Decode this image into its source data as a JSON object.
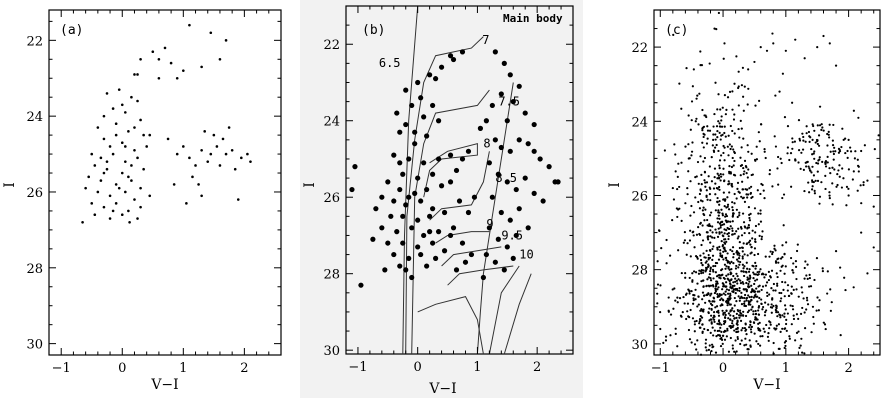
{
  "chart_data": [
    {
      "type": "scatter",
      "panel_label": "(a)",
      "xlabel": "V−I",
      "ylabel": "I",
      "xlim": [
        -1.2,
        2.6
      ],
      "ylim": [
        30.3,
        21.2
      ],
      "y_inverted": true,
      "xticks": [
        "−1",
        "0",
        "1",
        "2"
      ],
      "yticks": [
        "22",
        "24",
        "26",
        "28",
        "30"
      ],
      "marker": "small",
      "points": [
        [
          -0.3,
          24.0
        ],
        [
          -0.25,
          23.4
        ],
        [
          -0.05,
          23.3
        ],
        [
          0.15,
          23.5
        ],
        [
          0.25,
          23.6
        ],
        [
          -0.15,
          23.8
        ],
        [
          0.05,
          23.9
        ],
        [
          0.3,
          24.1
        ],
        [
          -0.4,
          24.3
        ],
        [
          -0.1,
          24.2
        ],
        [
          0.1,
          24.4
        ],
        [
          0.35,
          24.5
        ],
        [
          -0.3,
          24.6
        ],
        [
          -0.2,
          24.8
        ],
        [
          0.0,
          24.7
        ],
        [
          0.2,
          24.9
        ],
        [
          0.4,
          24.8
        ],
        [
          -0.5,
          25.0
        ],
        [
          -0.35,
          25.1
        ],
        [
          -0.15,
          25.0
        ],
        [
          0.05,
          25.2
        ],
        [
          0.25,
          25.1
        ],
        [
          -0.45,
          25.3
        ],
        [
          -0.25,
          25.4
        ],
        [
          0.0,
          25.5
        ],
        [
          0.15,
          25.3
        ],
        [
          0.35,
          25.4
        ],
        [
          -0.55,
          25.6
        ],
        [
          -0.35,
          25.7
        ],
        [
          -0.1,
          25.8
        ],
        [
          0.1,
          25.6
        ],
        [
          0.3,
          25.9
        ],
        [
          -0.6,
          25.9
        ],
        [
          -0.4,
          26.0
        ],
        [
          -0.2,
          26.1
        ],
        [
          0.05,
          26.0
        ],
        [
          0.2,
          26.2
        ],
        [
          0.45,
          26.1
        ],
        [
          -0.5,
          26.3
        ],
        [
          -0.3,
          26.4
        ],
        [
          -0.1,
          26.3
        ],
        [
          0.1,
          26.5
        ],
        [
          0.3,
          26.4
        ],
        [
          -0.45,
          26.6
        ],
        [
          -0.2,
          26.7
        ],
        [
          0.0,
          26.6
        ],
        [
          0.25,
          26.7
        ],
        [
          -0.65,
          26.8
        ],
        [
          -0.1,
          24.5
        ],
        [
          0.05,
          24.8
        ],
        [
          -0.05,
          25.9
        ],
        [
          0.15,
          25.7
        ],
        [
          -0.25,
          25.2
        ],
        [
          0.2,
          24.3
        ],
        [
          -0.15,
          26.5
        ],
        [
          0.0,
          23.7
        ],
        [
          -0.3,
          25.5
        ],
        [
          0.12,
          26.8
        ],
        [
          0.2,
          22.9
        ],
        [
          0.3,
          22.5
        ],
        [
          0.25,
          22.9
        ],
        [
          0.5,
          22.3
        ],
        [
          0.6,
          22.5
        ],
        [
          0.7,
          22.2
        ],
        [
          0.8,
          22.6
        ],
        [
          0.9,
          23.0
        ],
        [
          1.0,
          22.8
        ],
        [
          1.1,
          21.6
        ],
        [
          1.3,
          22.7
        ],
        [
          1.45,
          21.8
        ],
        [
          1.6,
          22.5
        ],
        [
          1.7,
          22.0
        ],
        [
          0.6,
          23.0
        ],
        [
          0.45,
          24.5
        ],
        [
          0.75,
          24.6
        ],
        [
          0.9,
          25.0
        ],
        [
          1.0,
          24.8
        ],
        [
          1.1,
          25.1
        ],
        [
          1.2,
          25.3
        ],
        [
          1.3,
          24.9
        ],
        [
          1.4,
          25.2
        ],
        [
          1.45,
          25.0
        ],
        [
          1.55,
          24.8
        ],
        [
          1.6,
          25.3
        ],
        [
          1.7,
          25.0
        ],
        [
          1.8,
          24.9
        ],
        [
          1.85,
          25.4
        ],
        [
          1.95,
          25.1
        ],
        [
          2.05,
          25.0
        ],
        [
          1.65,
          24.6
        ],
        [
          1.5,
          24.5
        ],
        [
          1.75,
          24.3
        ],
        [
          0.85,
          25.8
        ],
        [
          1.15,
          25.6
        ],
        [
          1.3,
          26.1
        ],
        [
          1.05,
          26.3
        ],
        [
          1.25,
          25.8
        ],
        [
          1.9,
          26.2
        ],
        [
          2.1,
          25.2
        ],
        [
          1.35,
          24.4
        ]
      ]
    },
    {
      "type": "scatter",
      "panel_label": "(b)",
      "title": "Main body",
      "xlabel": "V−I",
      "ylabel": "I",
      "xlim": [
        -1.2,
        2.6
      ],
      "ylim": [
        30.1,
        21.0
      ],
      "y_inverted": true,
      "xticks": [
        "−1",
        "0",
        "1",
        "2"
      ],
      "yticks": [
        "22",
        "24",
        "26",
        "28",
        "30"
      ],
      "marker": "large",
      "isochrone_labels": [
        {
          "text": "7",
          "x": 1.08,
          "y": 22.0
        },
        {
          "text": "6.5",
          "x": -0.65,
          "y": 22.6
        },
        {
          "text": "7.5",
          "x": 1.35,
          "y": 23.6
        },
        {
          "text": "8",
          "x": 1.1,
          "y": 24.7
        },
        {
          "text": "8.5",
          "x": 1.3,
          "y": 25.6
        },
        {
          "text": "9",
          "x": 1.15,
          "y": 26.8
        },
        {
          "text": "9.5",
          "x": 1.4,
          "y": 27.1
        },
        {
          "text": "10",
          "x": 1.7,
          "y": 27.6
        }
      ],
      "points": [
        [
          -0.2,
          23.2
        ],
        [
          0.0,
          23.0
        ],
        [
          0.2,
          22.8
        ],
        [
          0.4,
          22.6
        ],
        [
          0.6,
          22.4
        ],
        [
          0.75,
          22.2
        ],
        [
          0.55,
          22.3
        ],
        [
          0.3,
          22.9
        ],
        [
          -0.1,
          23.6
        ],
        [
          -0.35,
          23.8
        ],
        [
          -0.2,
          24.1
        ],
        [
          0.1,
          23.9
        ],
        [
          0.35,
          24.0
        ],
        [
          0.15,
          24.4
        ],
        [
          -0.05,
          24.6
        ],
        [
          -0.3,
          24.3
        ],
        [
          0.05,
          23.4
        ],
        [
          -0.4,
          24.9
        ],
        [
          -0.15,
          25.0
        ],
        [
          0.1,
          25.1
        ],
        [
          0.35,
          25.0
        ],
        [
          0.55,
          24.9
        ],
        [
          -0.25,
          25.4
        ],
        [
          0.0,
          25.5
        ],
        [
          0.25,
          25.4
        ],
        [
          -0.5,
          25.6
        ],
        [
          -0.3,
          25.8
        ],
        [
          -0.05,
          25.9
        ],
        [
          0.15,
          25.8
        ],
        [
          0.4,
          25.7
        ],
        [
          -0.6,
          26.0
        ],
        [
          -0.4,
          26.1
        ],
        [
          -0.2,
          26.2
        ],
        [
          0.05,
          26.1
        ],
        [
          0.25,
          26.3
        ],
        [
          -0.7,
          26.3
        ],
        [
          -0.45,
          26.5
        ],
        [
          -0.25,
          26.5
        ],
        [
          0.0,
          26.6
        ],
        [
          0.2,
          26.5
        ],
        [
          -0.6,
          26.8
        ],
        [
          -0.35,
          26.9
        ],
        [
          -0.1,
          26.8
        ],
        [
          0.1,
          27.0
        ],
        [
          0.35,
          26.9
        ],
        [
          -0.75,
          27.1
        ],
        [
          -0.5,
          27.2
        ],
        [
          -0.25,
          27.2
        ],
        [
          0.0,
          27.3
        ],
        [
          0.25,
          27.2
        ],
        [
          -0.4,
          27.5
        ],
        [
          -0.15,
          27.6
        ],
        [
          0.05,
          27.5
        ],
        [
          -0.3,
          27.8
        ],
        [
          0.15,
          27.8
        ],
        [
          -0.55,
          27.9
        ],
        [
          -0.1,
          28.1
        ],
        [
          -0.95,
          28.3
        ],
        [
          -0.05,
          24.3
        ],
        [
          0.25,
          23.6
        ],
        [
          -0.3,
          25.1
        ],
        [
          -0.15,
          26.0
        ],
        [
          0.2,
          26.9
        ],
        [
          -0.2,
          27.9
        ],
        [
          0.3,
          27.6
        ],
        [
          0.45,
          26.4
        ],
        [
          0.55,
          25.6
        ],
        [
          0.65,
          25.3
        ],
        [
          0.75,
          25.0
        ],
        [
          0.85,
          24.8
        ],
        [
          0.7,
          26.1
        ],
        [
          0.85,
          26.4
        ],
        [
          0.95,
          26.0
        ],
        [
          0.6,
          26.8
        ],
        [
          0.75,
          27.2
        ],
        [
          0.9,
          27.5
        ],
        [
          0.65,
          27.9
        ],
        [
          0.8,
          27.7
        ],
        [
          0.45,
          27.4
        ],
        [
          0.55,
          27.0
        ],
        [
          1.05,
          24.2
        ],
        [
          1.15,
          24.0
        ],
        [
          1.25,
          23.6
        ],
        [
          1.3,
          24.5
        ],
        [
          1.4,
          24.7
        ],
        [
          1.55,
          24.8
        ],
        [
          1.7,
          24.5
        ],
        [
          1.85,
          24.6
        ],
        [
          1.95,
          24.8
        ],
        [
          2.05,
          25.0
        ],
        [
          2.2,
          25.2
        ],
        [
          2.3,
          25.6
        ],
        [
          1.2,
          25.1
        ],
        [
          1.35,
          25.4
        ],
        [
          1.5,
          25.6
        ],
        [
          1.65,
          25.8
        ],
        [
          1.8,
          25.5
        ],
        [
          1.95,
          25.9
        ],
        [
          2.1,
          26.1
        ],
        [
          1.25,
          26.0
        ],
        [
          1.4,
          26.4
        ],
        [
          1.55,
          26.6
        ],
        [
          1.7,
          26.3
        ],
        [
          1.85,
          26.8
        ],
        [
          1.2,
          26.8
        ],
        [
          1.35,
          27.1
        ],
        [
          1.5,
          27.3
        ],
        [
          1.65,
          27.0
        ],
        [
          1.15,
          27.5
        ],
        [
          1.3,
          27.7
        ],
        [
          1.45,
          27.9
        ],
        [
          1.1,
          28.1
        ],
        [
          1.6,
          27.6
        ],
        [
          1.3,
          22.2
        ],
        [
          1.45,
          22.5
        ],
        [
          1.55,
          22.8
        ],
        [
          1.7,
          23.1
        ],
        [
          1.4,
          23.3
        ],
        [
          1.6,
          23.5
        ],
        [
          1.8,
          23.8
        ],
        [
          1.95,
          24.1
        ],
        [
          1.5,
          24.0
        ],
        [
          -1.05,
          25.2
        ],
        [
          -1.1,
          25.8
        ],
        [
          2.35,
          25.6
        ]
      ]
    },
    {
      "type": "scatter",
      "panel_label": "(c)",
      "xlabel": "V−I",
      "ylabel": "I",
      "xlim": [
        -1.1,
        2.5
      ],
      "ylim": [
        30.3,
        21.0
      ],
      "y_inverted": true,
      "xticks": [
        "−1",
        "0",
        "1",
        "2"
      ],
      "yticks": [
        "22",
        "24",
        "26",
        "28",
        "30"
      ],
      "marker": "small",
      "dense_cloud": {
        "description_counts": "approx 1600 stars",
        "main_sequence_center": [
          0.0,
          26.5
        ],
        "main_sequence_spread": [
          0.35,
          1.9
        ],
        "faint_cloud_center": [
          0.3,
          28.8
        ],
        "faint_cloud_spread": [
          0.6,
          0.8
        ],
        "red_clump_center": [
          1.5,
          25.0
        ],
        "red_clump_spread": [
          0.35,
          0.6
        ]
      },
      "points": [
        [
          0.6,
          22.0
        ],
        [
          0.7,
          22.1
        ],
        [
          0.8,
          21.9
        ],
        [
          1.0,
          22.1
        ],
        [
          1.15,
          21.8
        ],
        [
          1.3,
          22.3
        ],
        [
          1.5,
          22.0
        ],
        [
          1.6,
          21.7
        ],
        [
          1.7,
          21.9
        ],
        [
          0.5,
          22.4
        ],
        [
          0.4,
          22.6
        ],
        [
          1.8,
          22.5
        ],
        [
          1.9,
          24.2
        ],
        [
          2.0,
          24.5
        ],
        [
          2.1,
          25.0
        ],
        [
          2.2,
          24.8
        ],
        [
          2.3,
          25.6
        ],
        [
          2.4,
          26.3
        ],
        [
          2.0,
          26.0
        ],
        [
          2.2,
          27.0
        ],
        [
          1.8,
          27.5
        ],
        [
          2.3,
          28.1
        ],
        [
          2.4,
          27.4
        ],
        [
          -0.8,
          25.8
        ],
        [
          -0.9,
          27.2
        ],
        [
          -1.0,
          29.6
        ],
        [
          0.9,
          23.2
        ],
        [
          1.1,
          23.5
        ]
      ]
    }
  ]
}
